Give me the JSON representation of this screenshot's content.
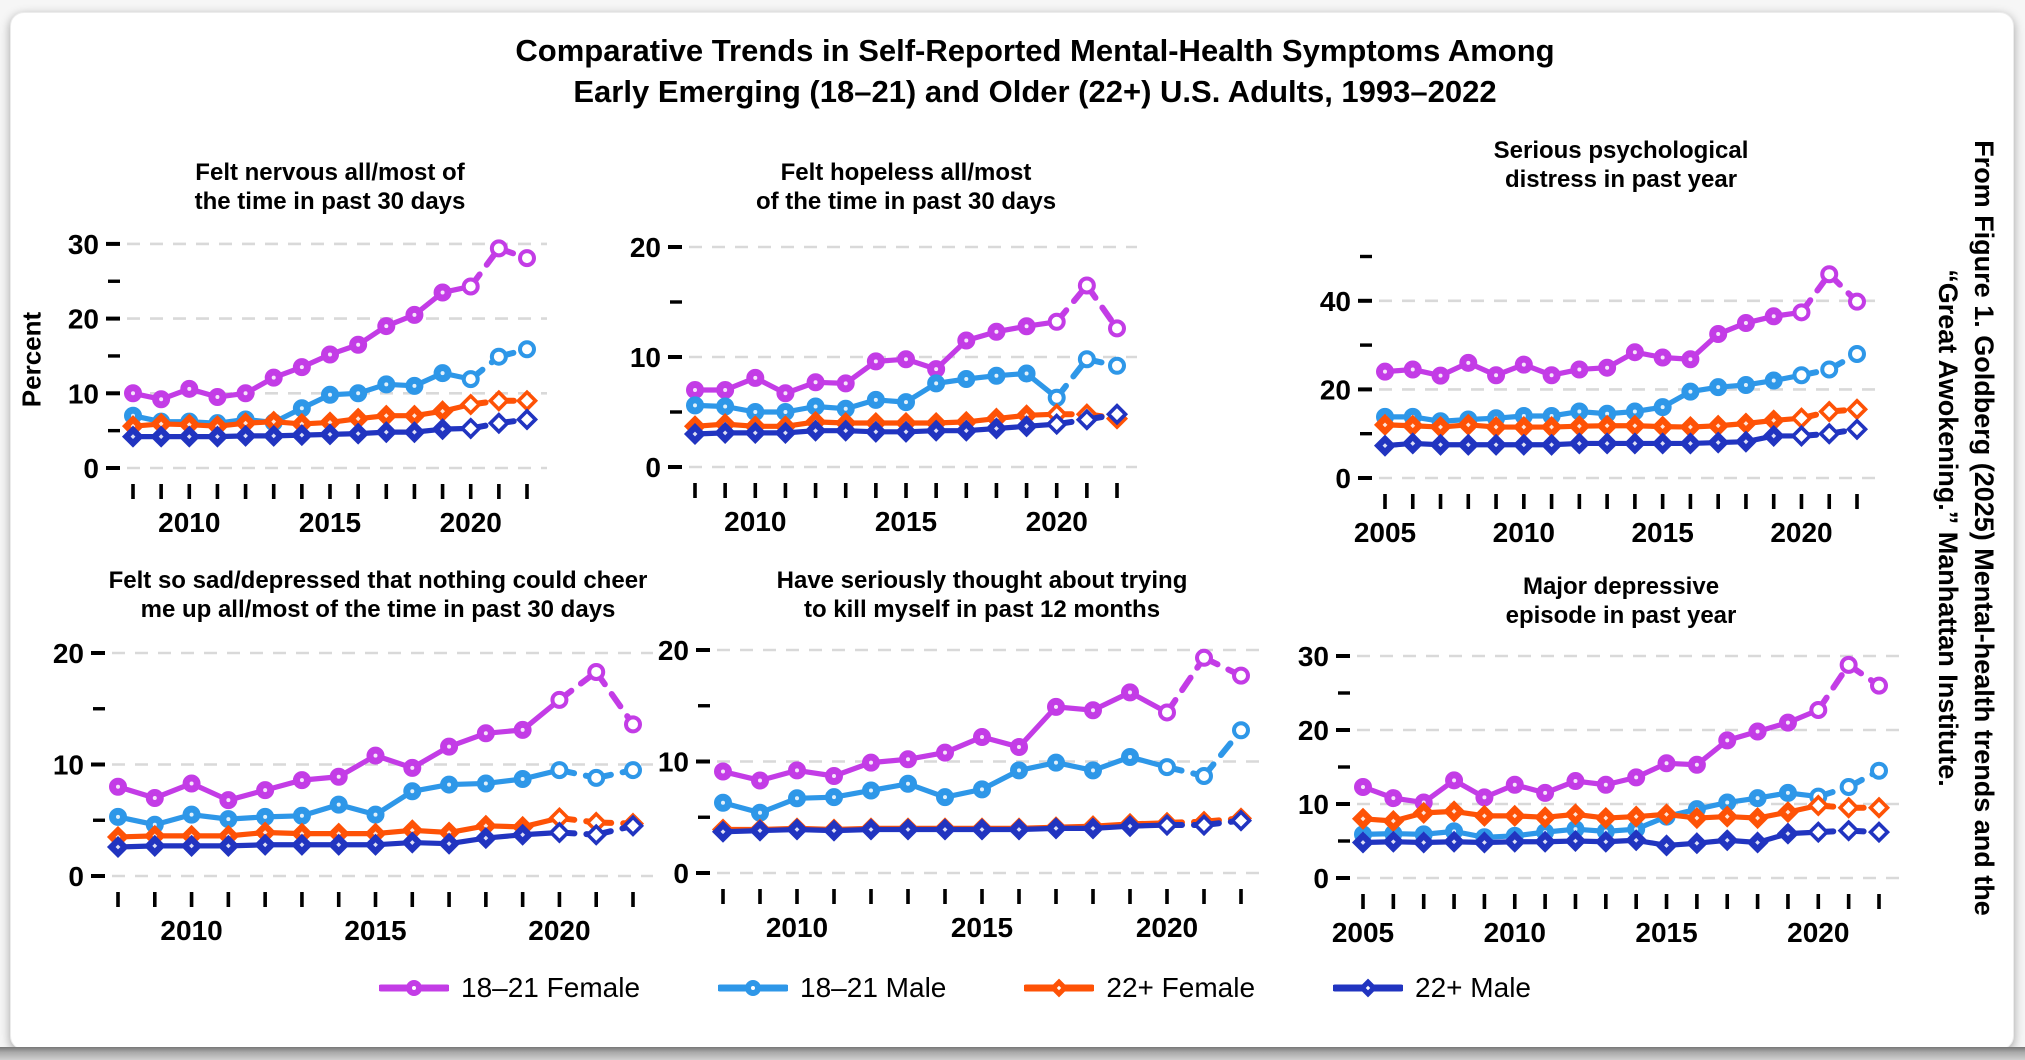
{
  "page": {
    "title_line1": "Comparative Trends in Self-Reported Mental-Health Symptoms Among",
    "title_line2": "Early Emerging (18–21) and Older (22+) U.S. Adults, 1993–2022",
    "ylabel": "Percent"
  },
  "legend": {
    "items": [
      {
        "label": "18–21 Female",
        "color": "#c33ce6",
        "marker": "circle"
      },
      {
        "label": "18–21 Male",
        "color": "#2e97e8",
        "marker": "circle"
      },
      {
        "label": "22+ Female",
        "color": "#fe5206",
        "marker": "diamond"
      },
      {
        "label": "22+ Male",
        "color": "#2134c0",
        "marker": "diamond"
      }
    ]
  },
  "caption": {
    "line1": "From Figure 1. Goldberg (2025) Mental-health trends and the",
    "line2": "“Great Awokening.” Manhattan Institute."
  },
  "chart_data": [
    {
      "type": "line",
      "title": "Felt nervous all/most of the time in past 30 days",
      "title_lines": [
        "Felt nervous all/most of",
        "the time in past 30 days"
      ],
      "years": [
        2008,
        2009,
        2010,
        2011,
        2012,
        2013,
        2014,
        2015,
        2016,
        2017,
        2018,
        2019,
        2020,
        2021,
        2022
      ],
      "x_tick_labels": [
        "2010",
        "2015",
        "2020"
      ],
      "ylim": [
        0,
        31
      ],
      "y_major": [
        0,
        10,
        20,
        30
      ],
      "y_minor": [
        5,
        15,
        25
      ],
      "open_from": 2020,
      "series": [
        {
          "name": "18–21 Female",
          "values": [
            10.0,
            9.2,
            10.6,
            9.5,
            10.0,
            12.1,
            13.5,
            15.2,
            16.5,
            19.0,
            20.5,
            23.5,
            24.3,
            29.4,
            28.1
          ]
        },
        {
          "name": "18–21 Male",
          "values": [
            7.0,
            6.2,
            6.2,
            6.0,
            6.5,
            6.1,
            8.0,
            9.8,
            10.0,
            11.2,
            11.0,
            12.7,
            11.9,
            14.9,
            15.9
          ]
        },
        {
          "name": "22+ Female",
          "values": [
            5.6,
            5.9,
            5.8,
            5.6,
            6.0,
            6.2,
            5.9,
            6.1,
            6.6,
            7.0,
            7.0,
            7.6,
            8.5,
            9.0,
            9.0
          ]
        },
        {
          "name": "22+ Male",
          "values": [
            4.2,
            4.2,
            4.2,
            4.2,
            4.3,
            4.3,
            4.4,
            4.5,
            4.6,
            4.8,
            4.8,
            5.2,
            5.3,
            6.0,
            6.5
          ]
        }
      ]
    },
    {
      "type": "line",
      "title": "Felt hopeless all/most of the time in past 30 days",
      "title_lines": [
        "Felt hopeless all/most",
        "of the time in past 30 days"
      ],
      "years": [
        2008,
        2009,
        2010,
        2011,
        2012,
        2013,
        2014,
        2015,
        2016,
        2017,
        2018,
        2019,
        2020,
        2021,
        2022
      ],
      "x_tick_labels": [
        "2010",
        "2015",
        "2020"
      ],
      "ylim": [
        0,
        20.5
      ],
      "y_major": [
        0,
        10,
        20
      ],
      "y_minor": [
        5,
        15
      ],
      "open_from": 2020,
      "series": [
        {
          "name": "18–21 Female",
          "values": [
            7.0,
            7.0,
            8.1,
            6.7,
            7.7,
            7.6,
            9.6,
            9.8,
            8.9,
            11.5,
            12.3,
            12.8,
            13.2,
            16.5,
            12.6
          ]
        },
        {
          "name": "18–21 Male",
          "values": [
            5.6,
            5.5,
            5.0,
            5.0,
            5.5,
            5.3,
            6.1,
            5.9,
            7.6,
            8.0,
            8.3,
            8.5,
            6.3,
            9.8,
            9.2
          ]
        },
        {
          "name": "22+ Female",
          "values": [
            3.7,
            3.9,
            3.7,
            3.7,
            4.1,
            4.0,
            4.0,
            4.0,
            4.0,
            4.1,
            4.4,
            4.7,
            4.8,
            4.8,
            4.4
          ]
        },
        {
          "name": "22+ Male",
          "values": [
            3.0,
            3.1,
            3.1,
            3.1,
            3.3,
            3.3,
            3.2,
            3.2,
            3.3,
            3.3,
            3.5,
            3.7,
            3.9,
            4.3,
            4.8
          ]
        }
      ]
    },
    {
      "type": "line",
      "title": "Serious psychological distress in past year",
      "title_lines": [
        "Serious psychological",
        "distress in past year"
      ],
      "years": [
        2005,
        2006,
        2007,
        2008,
        2009,
        2010,
        2011,
        2012,
        2013,
        2014,
        2015,
        2016,
        2017,
        2018,
        2019,
        2020,
        2021,
        2022
      ],
      "x_tick_labels": [
        "2005",
        "2010",
        "2015",
        "2020"
      ],
      "ylim": [
        0,
        51
      ],
      "y_major": [
        0,
        20,
        40
      ],
      "y_minor": [
        10,
        30,
        50
      ],
      "open_from": 2020,
      "series": [
        {
          "name": "18–21 Female",
          "values": [
            24.0,
            24.5,
            23.1,
            26.0,
            23.2,
            25.6,
            23.2,
            24.5,
            24.9,
            28.4,
            27.2,
            26.8,
            32.5,
            35.0,
            36.5,
            37.4,
            46.0,
            39.8
          ]
        },
        {
          "name": "18–21 Male",
          "values": [
            13.8,
            13.8,
            12.8,
            13.2,
            13.5,
            14.0,
            14.0,
            15.0,
            14.5,
            15.0,
            16.0,
            19.5,
            20.5,
            21.0,
            22.0,
            23.2,
            24.5,
            28.0
          ]
        },
        {
          "name": "22+ Female",
          "values": [
            12.0,
            11.8,
            11.5,
            12.0,
            11.5,
            11.5,
            11.5,
            11.7,
            11.8,
            11.8,
            11.6,
            11.5,
            11.8,
            12.3,
            13.0,
            13.5,
            15.0,
            15.5
          ]
        },
        {
          "name": "22+ Male",
          "values": [
            7.3,
            7.8,
            7.5,
            7.5,
            7.5,
            7.5,
            7.5,
            7.8,
            7.8,
            7.8,
            7.8,
            7.8,
            8.0,
            8.2,
            9.5,
            9.5,
            10.0,
            11.0
          ]
        }
      ]
    },
    {
      "type": "line",
      "title": "Felt so sad/depressed that nothing could cheer me up all/most of the time in past 30 days",
      "title_lines": [
        "Felt so sad/depressed that nothing could cheer",
        "me up all/most of the time in past 30 days"
      ],
      "years": [
        2008,
        2009,
        2010,
        2011,
        2012,
        2013,
        2014,
        2015,
        2016,
        2017,
        2018,
        2019,
        2020,
        2021,
        2022
      ],
      "x_tick_labels": [
        "2010",
        "2015",
        "2020"
      ],
      "ylim": [
        0,
        20.5
      ],
      "y_major": [
        0,
        10,
        20
      ],
      "y_minor": [
        5,
        15
      ],
      "open_from": 2020,
      "series": [
        {
          "name": "18–21 Female",
          "values": [
            8.0,
            7.0,
            8.3,
            6.8,
            7.7,
            8.6,
            8.9,
            10.8,
            9.7,
            11.6,
            12.8,
            13.1,
            15.8,
            18.3,
            13.6
          ]
        },
        {
          "name": "18–21 Male",
          "values": [
            5.3,
            4.6,
            5.5,
            5.1,
            5.3,
            5.4,
            6.4,
            5.5,
            7.6,
            8.2,
            8.3,
            8.7,
            9.5,
            8.8,
            9.5
          ]
        },
        {
          "name": "22+ Female",
          "values": [
            3.5,
            3.6,
            3.6,
            3.6,
            3.9,
            3.8,
            3.8,
            3.8,
            4.1,
            3.9,
            4.5,
            4.4,
            5.2,
            4.8,
            4.7
          ]
        },
        {
          "name": "22+ Male",
          "values": [
            2.6,
            2.7,
            2.7,
            2.7,
            2.8,
            2.8,
            2.8,
            2.8,
            3.0,
            2.9,
            3.4,
            3.7,
            3.9,
            3.7,
            4.5
          ]
        }
      ]
    },
    {
      "type": "line",
      "title": "Have seriously thought about trying to kill myself in past 12 months",
      "title_lines": [
        "Have seriously thought about trying",
        "to kill myself in past 12 months"
      ],
      "years": [
        2008,
        2009,
        2010,
        2011,
        2012,
        2013,
        2014,
        2015,
        2016,
        2017,
        2018,
        2019,
        2020,
        2021,
        2022
      ],
      "x_tick_labels": [
        "2010",
        "2015",
        "2020"
      ],
      "ylim": [
        0,
        20.5
      ],
      "y_major": [
        0,
        10,
        20
      ],
      "y_minor": [
        5,
        15
      ],
      "open_from": 2020,
      "series": [
        {
          "name": "18–21 Female",
          "values": [
            9.1,
            8.3,
            9.2,
            8.7,
            9.9,
            10.2,
            10.8,
            12.2,
            11.3,
            14.9,
            14.6,
            16.2,
            14.4,
            19.3,
            17.7
          ]
        },
        {
          "name": "18–21 Male",
          "values": [
            6.3,
            5.4,
            6.7,
            6.8,
            7.4,
            8.0,
            6.8,
            7.5,
            9.2,
            9.9,
            9.2,
            10.4,
            9.5,
            8.7,
            12.8
          ]
        },
        {
          "name": "22+ Female",
          "values": [
            3.9,
            3.9,
            4.0,
            3.9,
            4.0,
            4.0,
            4.0,
            4.0,
            4.0,
            4.1,
            4.2,
            4.4,
            4.5,
            4.6,
            4.9
          ]
        },
        {
          "name": "22+ Male",
          "values": [
            3.7,
            3.8,
            3.9,
            3.8,
            3.9,
            3.9,
            3.9,
            3.9,
            3.9,
            4.0,
            4.0,
            4.2,
            4.3,
            4.3,
            4.7
          ]
        }
      ]
    },
    {
      "type": "line",
      "title": "Major depressive episode in past year",
      "title_lines": [
        "Major depressive",
        "episode in past year"
      ],
      "years": [
        2005,
        2006,
        2007,
        2008,
        2009,
        2010,
        2011,
        2012,
        2013,
        2014,
        2015,
        2016,
        2017,
        2018,
        2019,
        2020,
        2021,
        2022
      ],
      "x_tick_labels": [
        "2005",
        "2010",
        "2015",
        "2020"
      ],
      "ylim": [
        0,
        31
      ],
      "y_major": [
        0,
        10,
        20,
        30
      ],
      "y_minor": [
        5,
        15,
        25
      ],
      "open_from": 2020,
      "series": [
        {
          "name": "18–21 Female",
          "values": [
            12.3,
            10.8,
            10.2,
            13.2,
            10.9,
            12.6,
            11.5,
            13.1,
            12.6,
            13.6,
            15.5,
            15.3,
            18.6,
            19.8,
            21.0,
            22.7,
            28.8,
            26.0
          ]
        },
        {
          "name": "18–21 Male",
          "values": [
            5.9,
            6.0,
            5.9,
            6.3,
            5.5,
            5.7,
            6.2,
            6.6,
            6.3,
            6.6,
            8.3,
            9.3,
            10.2,
            10.8,
            11.5,
            11.0,
            12.3,
            14.5
          ]
        },
        {
          "name": "22+ Female",
          "values": [
            8.0,
            7.7,
            8.8,
            9.0,
            8.4,
            8.4,
            8.2,
            8.6,
            8.1,
            8.3,
            8.6,
            8.1,
            8.3,
            8.1,
            8.9,
            9.8,
            9.5,
            9.5
          ]
        },
        {
          "name": "22+ Male",
          "values": [
            4.8,
            4.9,
            4.8,
            4.9,
            4.8,
            4.9,
            4.9,
            5.0,
            4.9,
            5.1,
            4.4,
            4.7,
            5.1,
            4.8,
            6.0,
            6.2,
            6.4,
            6.2
          ]
        }
      ]
    }
  ]
}
